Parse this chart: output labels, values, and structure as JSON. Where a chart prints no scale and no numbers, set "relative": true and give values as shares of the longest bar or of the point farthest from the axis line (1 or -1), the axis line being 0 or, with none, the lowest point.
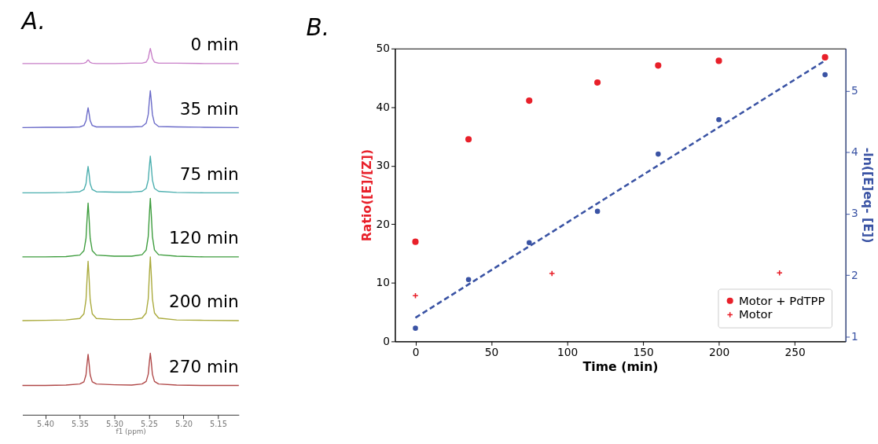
{
  "chart_data": [
    {
      "type": "line",
      "title": "A.",
      "xlabel": "f1 (ppm)",
      "relative": true,
      "grid": false,
      "legend": false,
      "tick_labels": "x",
      "xlim": [
        5.433,
        5.12
      ],
      "xticks": [
        {
          "value": 5.4,
          "label": "5.40"
        },
        {
          "value": 5.35,
          "label": "5.35"
        },
        {
          "value": 5.3,
          "label": "5.30"
        },
        {
          "value": 5.25,
          "label": "5.25"
        },
        {
          "value": 5.2,
          "label": "5.20"
        },
        {
          "value": 5.15,
          "label": "5.15"
        }
      ],
      "x": [
        5.433,
        5.4,
        5.37,
        5.35,
        5.344,
        5.341,
        5.3395,
        5.338,
        5.3365,
        5.335,
        5.332,
        5.326,
        5.3,
        5.275,
        5.26,
        5.254,
        5.251,
        5.2495,
        5.248,
        5.2465,
        5.245,
        5.242,
        5.236,
        5.21,
        5.17,
        5.12
      ],
      "series": [
        {
          "name": "0 min",
          "color": "#c87fc8",
          "values": [
            0.959,
            0.959,
            0.959,
            0.959,
            0.96,
            0.962,
            0.966,
            0.969,
            0.966,
            0.962,
            0.96,
            0.959,
            0.959,
            0.96,
            0.96,
            0.963,
            0.973,
            0.988,
            1.0,
            0.988,
            0.973,
            0.963,
            0.96,
            0.96,
            0.959,
            0.959
          ]
        },
        {
          "name": "35 min",
          "color": "#6a6ac8",
          "values": [
            0.784,
            0.785,
            0.785,
            0.786,
            0.79,
            0.803,
            0.822,
            0.838,
            0.822,
            0.803,
            0.79,
            0.786,
            0.786,
            0.786,
            0.787,
            0.796,
            0.82,
            0.855,
            0.885,
            0.855,
            0.82,
            0.796,
            0.787,
            0.786,
            0.785,
            0.784
          ]
        },
        {
          "name": "75 min",
          "color": "#4aaeae",
          "values": [
            0.606,
            0.606,
            0.607,
            0.609,
            0.615,
            0.631,
            0.657,
            0.678,
            0.657,
            0.631,
            0.615,
            0.609,
            0.608,
            0.608,
            0.61,
            0.618,
            0.641,
            0.676,
            0.706,
            0.676,
            0.641,
            0.618,
            0.61,
            0.607,
            0.606,
            0.606
          ]
        },
        {
          "name": "120 min",
          "color": "#3c9c3c",
          "values": [
            0.431,
            0.431,
            0.432,
            0.436,
            0.448,
            0.482,
            0.534,
            0.578,
            0.534,
            0.482,
            0.448,
            0.436,
            0.433,
            0.433,
            0.437,
            0.45,
            0.487,
            0.543,
            0.591,
            0.543,
            0.487,
            0.45,
            0.437,
            0.433,
            0.431,
            0.431
          ]
        },
        {
          "name": "200 min",
          "color": "#aaaa3c",
          "values": [
            0.257,
            0.258,
            0.259,
            0.263,
            0.276,
            0.314,
            0.371,
            0.419,
            0.371,
            0.314,
            0.276,
            0.263,
            0.26,
            0.26,
            0.264,
            0.278,
            0.317,
            0.378,
            0.431,
            0.378,
            0.317,
            0.278,
            0.264,
            0.259,
            0.258,
            0.257
          ]
        },
        {
          "name": "270 min",
          "color": "#b04848",
          "values": [
            0.08,
            0.08,
            0.081,
            0.084,
            0.09,
            0.109,
            0.139,
            0.165,
            0.139,
            0.109,
            0.09,
            0.084,
            0.082,
            0.081,
            0.084,
            0.091,
            0.111,
            0.142,
            0.168,
            0.142,
            0.111,
            0.091,
            0.084,
            0.081,
            0.08,
            0.08
          ]
        }
      ]
    },
    {
      "type": "scatter",
      "title": "B.",
      "xlabel": "Time (min)",
      "ylabel": "Ratio([E]/[Z])",
      "y2label": "-ln([E]eq- [E])",
      "grid": false,
      "legend": "bottom right",
      "xlim": [
        -13.5,
        283.5
      ],
      "xticks": [
        0,
        50,
        100,
        150,
        200,
        250
      ],
      "ylim": [
        0,
        50
      ],
      "yticks": [
        0,
        10,
        20,
        30,
        40,
        50
      ],
      "y2lim": [
        0.926,
        5.686
      ],
      "y2ticks": [
        1,
        2,
        3,
        4,
        5
      ],
      "series": [
        {
          "name": "Motor + PdTPP",
          "color": "#e8202a",
          "marker": "circle",
          "x": [
            0,
            35,
            75,
            120,
            160,
            200,
            270
          ],
          "values": [
            17.0,
            34.5,
            41.1,
            44.2,
            47.1,
            47.9,
            48.5
          ]
        },
        {
          "name": "Motor",
          "color": "#e8202a",
          "marker": "cross",
          "x": [
            0,
            90,
            240
          ],
          "values": [
            7.8,
            11.6,
            11.7
          ]
        },
        {
          "color": "#3a53a4",
          "marker": "circle",
          "axis": "y2",
          "x": [
            0,
            35,
            75,
            120,
            160,
            200,
            270
          ],
          "values": [
            1.14,
            1.93,
            2.53,
            3.04,
            3.97,
            4.53,
            5.26
          ]
        },
        {
          "type": "line",
          "color": "#3a53a4",
          "line_style": "dashed",
          "marker": "none",
          "axis": "y2",
          "x": [
            0,
            270
          ],
          "values": [
            1.31,
            5.49
          ]
        }
      ]
    }
  ]
}
